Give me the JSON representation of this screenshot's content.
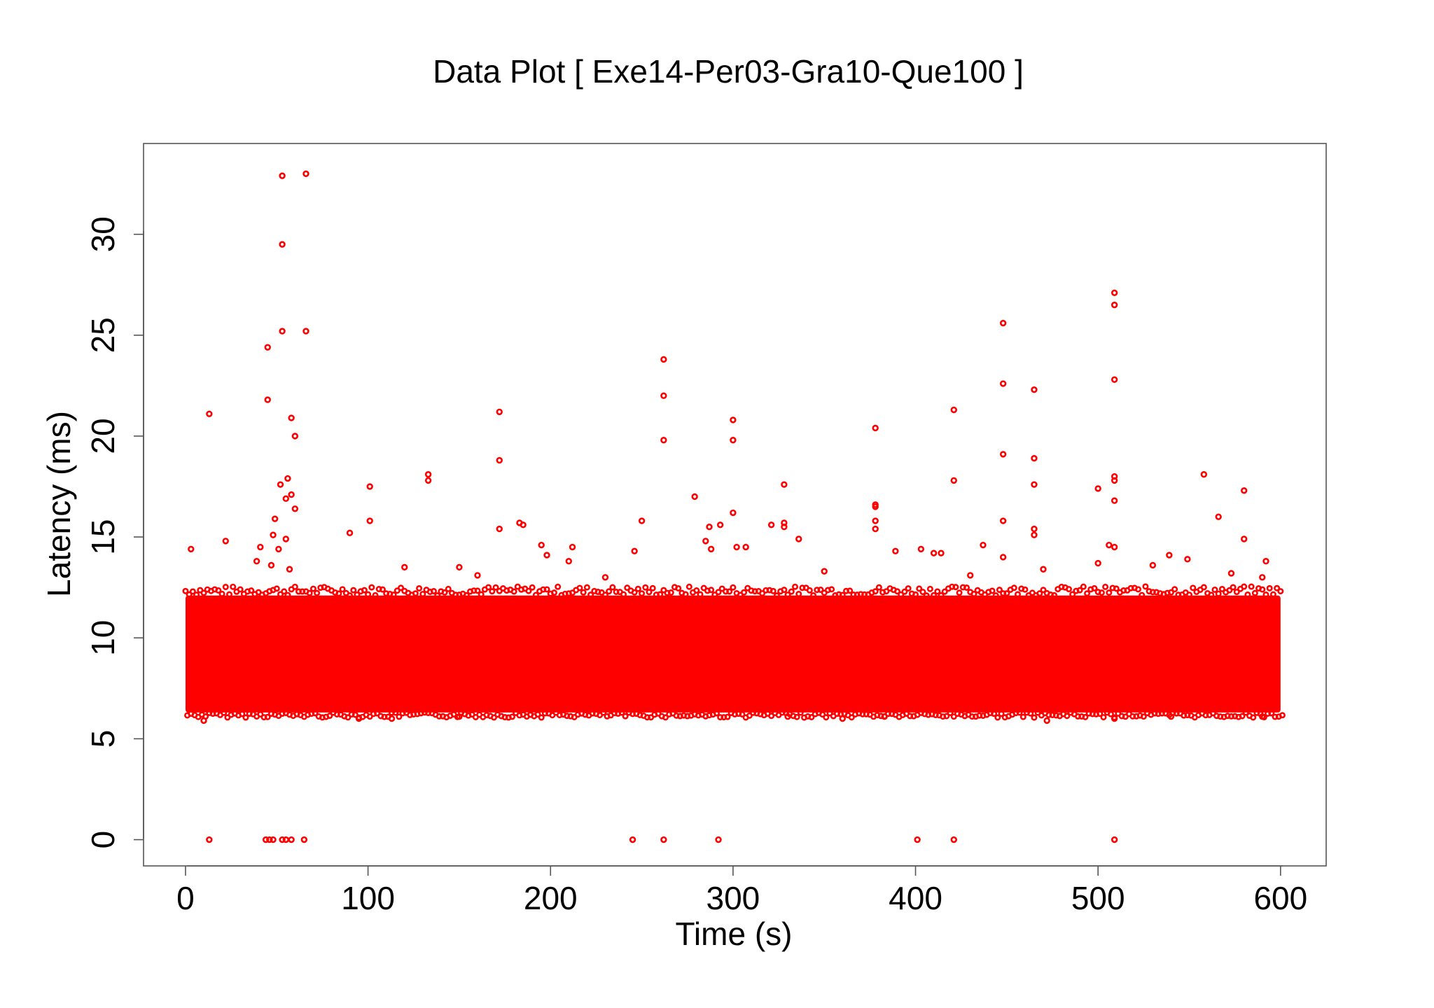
{
  "chart_data": {
    "type": "scatter",
    "title": "Data Plot [ Exe14-Per03-Gra10-Que100 ]",
    "xlabel": "Time (s)",
    "ylabel": "Latency (ms)",
    "xlim": [
      -23,
      625
    ],
    "ylim": [
      -1.3,
      34.5
    ],
    "x_ticks": [
      0,
      100,
      200,
      300,
      400,
      500,
      600
    ],
    "y_ticks": [
      0,
      5,
      10,
      15,
      20,
      25,
      30
    ],
    "grid": false,
    "legend": "none",
    "marker": "open-circle",
    "color": "#ff0000",
    "dense_band": {
      "x_range": [
        0,
        600
      ],
      "y_range": [
        6.3,
        12.1
      ],
      "note_points": "continuous dense cloud of samples"
    },
    "series": [
      {
        "values": [
          [
            13,
            0
          ],
          [
            44,
            0
          ],
          [
            46,
            0
          ],
          [
            48,
            0
          ],
          [
            53,
            0
          ],
          [
            55,
            0
          ],
          [
            58,
            0
          ],
          [
            65,
            0
          ],
          [
            245,
            0
          ],
          [
            262,
            0
          ],
          [
            292,
            0
          ],
          [
            401,
            0
          ],
          [
            421,
            0
          ],
          [
            509,
            0
          ],
          [
            53,
            32.9
          ],
          [
            66,
            33.0
          ],
          [
            53,
            29.5
          ],
          [
            53,
            25.2
          ],
          [
            66,
            25.2
          ],
          [
            45,
            24.4
          ],
          [
            45,
            21.8
          ],
          [
            13,
            21.1
          ],
          [
            58,
            20.9
          ],
          [
            60,
            20.0
          ],
          [
            52,
            17.6
          ],
          [
            56,
            17.9
          ],
          [
            58,
            17.1
          ],
          [
            55,
            16.9
          ],
          [
            60,
            16.4
          ],
          [
            49,
            15.9
          ],
          [
            48,
            15.1
          ],
          [
            55,
            14.9
          ],
          [
            51,
            14.4
          ],
          [
            41,
            14.5
          ],
          [
            22,
            14.8
          ],
          [
            3,
            14.4
          ],
          [
            47,
            13.6
          ],
          [
            39,
            13.8
          ],
          [
            57,
            13.4
          ],
          [
            172,
            21.2
          ],
          [
            172,
            18.8
          ],
          [
            172,
            15.4
          ],
          [
            133,
            18.1
          ],
          [
            133,
            17.8
          ],
          [
            101,
            17.5
          ],
          [
            101,
            15.8
          ],
          [
            90,
            15.2
          ],
          [
            183,
            15.7
          ],
          [
            185,
            15.6
          ],
          [
            195,
            14.6
          ],
          [
            198,
            14.1
          ],
          [
            212,
            14.5
          ],
          [
            210,
            13.8
          ],
          [
            262,
            23.8
          ],
          [
            262,
            22.0
          ],
          [
            262,
            19.8
          ],
          [
            250,
            15.8
          ],
          [
            246,
            14.3
          ],
          [
            279,
            17.0
          ],
          [
            287,
            15.5
          ],
          [
            293,
            15.6
          ],
          [
            285,
            14.8
          ],
          [
            288,
            14.4
          ],
          [
            300,
            20.8
          ],
          [
            300,
            19.8
          ],
          [
            300,
            16.2
          ],
          [
            302,
            14.5
          ],
          [
            307,
            14.5
          ],
          [
            328,
            17.6
          ],
          [
            321,
            15.6
          ],
          [
            328,
            15.7
          ],
          [
            328,
            15.5
          ],
          [
            336,
            14.9
          ],
          [
            378,
            20.4
          ],
          [
            378,
            16.6
          ],
          [
            378,
            16.5
          ],
          [
            378,
            15.8
          ],
          [
            378,
            15.4
          ],
          [
            389,
            14.3
          ],
          [
            403,
            14.4
          ],
          [
            410,
            14.2
          ],
          [
            414,
            14.2
          ],
          [
            421,
            21.3
          ],
          [
            421,
            17.8
          ],
          [
            437,
            14.6
          ],
          [
            448,
            25.6
          ],
          [
            448,
            22.6
          ],
          [
            448,
            19.1
          ],
          [
            448,
            15.8
          ],
          [
            448,
            14.0
          ],
          [
            465,
            22.3
          ],
          [
            465,
            18.9
          ],
          [
            465,
            17.6
          ],
          [
            465,
            15.4
          ],
          [
            465,
            15.1
          ],
          [
            509,
            27.1
          ],
          [
            509,
            26.5
          ],
          [
            509,
            22.8
          ],
          [
            509,
            18.0
          ],
          [
            509,
            17.8
          ],
          [
            509,
            16.8
          ],
          [
            500,
            17.4
          ],
          [
            509,
            14.5
          ],
          [
            500,
            13.7
          ],
          [
            506,
            14.6
          ],
          [
            539,
            14.1
          ],
          [
            549,
            13.9
          ],
          [
            558,
            18.1
          ],
          [
            566,
            16.0
          ],
          [
            580,
            17.3
          ],
          [
            580,
            14.9
          ],
          [
            592,
            13.8
          ],
          [
            573,
            13.2
          ],
          [
            530,
            13.6
          ],
          [
            150,
            13.5
          ],
          [
            160,
            13.1
          ],
          [
            120,
            13.5
          ],
          [
            230,
            13.0
          ],
          [
            350,
            13.3
          ],
          [
            430,
            13.1
          ],
          [
            470,
            13.4
          ],
          [
            590,
            13.0
          ],
          [
            10,
            5.9
          ],
          [
            95,
            6.0
          ],
          [
            113,
            6.0
          ],
          [
            150,
            6.1
          ],
          [
            330,
            6.1
          ],
          [
            360,
            6.0
          ],
          [
            383,
            6.1
          ],
          [
            472,
            5.9
          ],
          [
            509,
            6.0
          ],
          [
            540,
            6.1
          ],
          [
            590,
            6.1
          ]
        ]
      }
    ]
  }
}
